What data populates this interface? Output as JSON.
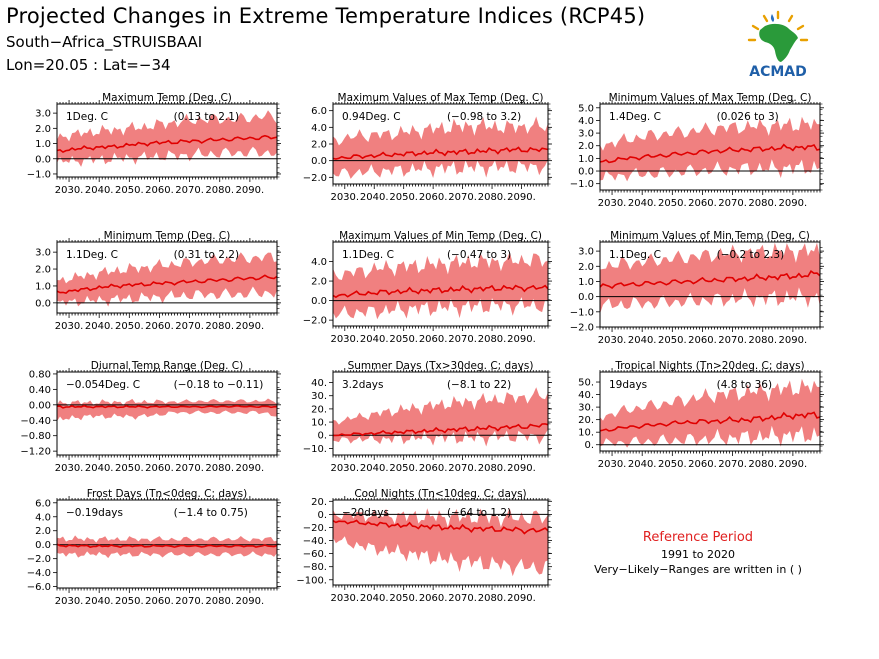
{
  "header": {
    "title": "Projected Changes in Extreme Temperature Indices (RCP45)",
    "location": "South−Africa_STRUISBAAI",
    "coords": "Lon=20.05 : Lat=−34"
  },
  "logo": {
    "text": "ACMAD",
    "icon": "africa-map-logo"
  },
  "reference": {
    "title": "Reference Period",
    "period": "1991 to 2020",
    "note": "Very−Likely−Ranges are written in ( )"
  },
  "colors": {
    "band": "#f08080",
    "line": "#e00000",
    "zero": "#000000"
  },
  "chart_data": [
    {
      "type": "area",
      "title": "Maximum Temp (Deg. C)",
      "mean_label": "1Deg. C",
      "range_label": "(0.13 to 2.1)",
      "x_ticks": [
        "2030.",
        "2040.",
        "2050.",
        "2060.",
        "2070.",
        "2080.",
        "2090."
      ],
      "y_ticks": [
        "−1.0",
        "0.0",
        "1.0",
        "2.0",
        "3.0"
      ],
      "ylim": [
        -1.2,
        3.6
      ],
      "series": [
        {
          "name": "median",
          "x": [
            2026,
            2035,
            2045,
            2055,
            2065,
            2075,
            2085,
            2095,
            2099
          ],
          "y": [
            0.5,
            0.7,
            0.8,
            1.0,
            1.1,
            1.2,
            1.3,
            1.4,
            1.4
          ]
        },
        {
          "name": "upper",
          "x": [
            2026,
            2035,
            2045,
            2055,
            2065,
            2075,
            2085,
            2095,
            2099
          ],
          "y": [
            1.4,
            1.7,
            1.9,
            2.1,
            2.4,
            2.6,
            2.6,
            2.8,
            2.7
          ]
        },
        {
          "name": "lower",
          "x": [
            2026,
            2035,
            2045,
            2055,
            2065,
            2075,
            2085,
            2095,
            2099
          ],
          "y": [
            -0.2,
            -0.1,
            0.0,
            0.1,
            0.2,
            0.3,
            0.4,
            0.4,
            0.4
          ]
        }
      ]
    },
    {
      "type": "area",
      "title": "Maximum Values of Max Temp (Deg. C)",
      "mean_label": "0.94Deg. C",
      "range_label": "(−0.98 to 3.2)",
      "x_ticks": [
        "2030.",
        "2040.",
        "2050.",
        "2060.",
        "2070.",
        "2080.",
        "2090."
      ],
      "y_ticks": [
        "−2.0",
        "0.0",
        "2.0",
        "4.0",
        "6.0"
      ],
      "ylim": [
        -2.8,
        6.8
      ],
      "series": [
        {
          "name": "median",
          "x": [
            2026,
            2035,
            2045,
            2055,
            2065,
            2075,
            2085,
            2095,
            2099
          ],
          "y": [
            0.3,
            0.5,
            0.7,
            0.9,
            1.0,
            1.1,
            1.3,
            1.3,
            1.3
          ]
        },
        {
          "name": "upper",
          "x": [
            2026,
            2035,
            2045,
            2055,
            2065,
            2075,
            2085,
            2095,
            2099
          ],
          "y": [
            2.4,
            3.0,
            3.2,
            3.6,
            4.0,
            4.2,
            4.0,
            4.2,
            4.0
          ]
        },
        {
          "name": "lower",
          "x": [
            2026,
            2035,
            2045,
            2055,
            2065,
            2075,
            2085,
            2095,
            2099
          ],
          "y": [
            -1.6,
            -1.4,
            -1.2,
            -1.0,
            -0.9,
            -0.8,
            -0.8,
            -0.7,
            -0.8
          ]
        }
      ]
    },
    {
      "type": "area",
      "title": "Minimum Values of Max Temp (Deg. C)",
      "mean_label": "1.4Deg. C",
      "range_label": "(0.026 to 3)",
      "x_ticks": [
        "2030.",
        "2040.",
        "2050.",
        "2060.",
        "2070.",
        "2080.",
        "2090."
      ],
      "y_ticks": [
        "−1.0",
        "0.0",
        "1.0",
        "2.0",
        "3.0",
        "4.0",
        "5.0"
      ],
      "ylim": [
        -1.5,
        5.3
      ],
      "series": [
        {
          "name": "median",
          "x": [
            2026,
            2035,
            2045,
            2055,
            2065,
            2075,
            2085,
            2095,
            2099
          ],
          "y": [
            0.7,
            1.0,
            1.2,
            1.4,
            1.6,
            1.7,
            1.8,
            1.9,
            1.8
          ]
        },
        {
          "name": "upper",
          "x": [
            2026,
            2035,
            2045,
            2055,
            2065,
            2075,
            2085,
            2095,
            2099
          ],
          "y": [
            2.0,
            2.5,
            2.9,
            3.1,
            3.4,
            3.5,
            3.6,
            3.7,
            3.6
          ]
        },
        {
          "name": "lower",
          "x": [
            2026,
            2035,
            2045,
            2055,
            2065,
            2075,
            2085,
            2095,
            2099
          ],
          "y": [
            -0.5,
            -0.3,
            -0.2,
            0.0,
            0.1,
            0.2,
            0.2,
            0.3,
            0.2
          ]
        }
      ]
    },
    {
      "type": "area",
      "title": "Minimum Temp (Deg. C)",
      "mean_label": "1.1Deg. C",
      "range_label": "(0.31 to 2.2)",
      "x_ticks": [
        "2030.",
        "2040.",
        "2050.",
        "2060.",
        "2070.",
        "2080.",
        "2090."
      ],
      "y_ticks": [
        "0.0",
        "1.0",
        "2.0",
        "3.0"
      ],
      "ylim": [
        -0.6,
        3.6
      ],
      "series": [
        {
          "name": "median",
          "x": [
            2026,
            2035,
            2045,
            2055,
            2065,
            2075,
            2085,
            2095,
            2099
          ],
          "y": [
            0.6,
            0.8,
            1.0,
            1.1,
            1.2,
            1.3,
            1.4,
            1.5,
            1.5
          ]
        },
        {
          "name": "upper",
          "x": [
            2026,
            2035,
            2045,
            2055,
            2065,
            2075,
            2085,
            2095,
            2099
          ],
          "y": [
            1.3,
            1.6,
            1.9,
            2.1,
            2.3,
            2.5,
            2.6,
            2.7,
            2.7
          ]
        },
        {
          "name": "lower",
          "x": [
            2026,
            2035,
            2045,
            2055,
            2065,
            2075,
            2085,
            2095,
            2099
          ],
          "y": [
            0.0,
            0.1,
            0.2,
            0.3,
            0.4,
            0.5,
            0.5,
            0.6,
            0.6
          ]
        }
      ]
    },
    {
      "type": "area",
      "title": "Maximum Values of Min Temp (Deg. C)",
      "mean_label": "1.1Deg. C",
      "range_label": "(−0.47 to 3)",
      "x_ticks": [
        "2030.",
        "2040.",
        "2050.",
        "2060.",
        "2070.",
        "2080.",
        "2090."
      ],
      "y_ticks": [
        "−2.0",
        "0.0",
        "2.0",
        "4.0"
      ],
      "ylim": [
        -2.6,
        6.0
      ],
      "series": [
        {
          "name": "median",
          "x": [
            2026,
            2035,
            2045,
            2055,
            2065,
            2075,
            2085,
            2095,
            2099
          ],
          "y": [
            0.5,
            0.7,
            0.9,
            1.0,
            1.1,
            1.2,
            1.3,
            1.3,
            1.3
          ]
        },
        {
          "name": "upper",
          "x": [
            2026,
            2035,
            2045,
            2055,
            2065,
            2075,
            2085,
            2095,
            2099
          ],
          "y": [
            2.6,
            3.0,
            3.4,
            3.6,
            3.8,
            4.0,
            4.0,
            4.2,
            4.0
          ]
        },
        {
          "name": "lower",
          "x": [
            2026,
            2035,
            2045,
            2055,
            2065,
            2075,
            2085,
            2095,
            2099
          ],
          "y": [
            -1.4,
            -1.2,
            -1.0,
            -0.8,
            -0.7,
            -0.6,
            -0.5,
            -0.5,
            -0.5
          ]
        }
      ]
    },
    {
      "type": "area",
      "title": "Minimum Values of Min Temp (Deg. C)",
      "mean_label": "1.1Deg. C",
      "range_label": "(−0.2 to 2.3)",
      "x_ticks": [
        "2030.",
        "2040.",
        "2050.",
        "2060.",
        "2070.",
        "2080.",
        "2090."
      ],
      "y_ticks": [
        "−2.0",
        "−1.0",
        "0.0",
        "1.0",
        "2.0",
        "3.0"
      ],
      "ylim": [
        -2.0,
        3.6
      ],
      "series": [
        {
          "name": "median",
          "x": [
            2026,
            2035,
            2045,
            2055,
            2065,
            2075,
            2085,
            2095,
            2099
          ],
          "y": [
            0.7,
            0.8,
            0.9,
            1.0,
            1.1,
            1.2,
            1.3,
            1.4,
            1.6
          ]
        },
        {
          "name": "upper",
          "x": [
            2026,
            2035,
            2045,
            2055,
            2065,
            2075,
            2085,
            2095,
            2099
          ],
          "y": [
            2.0,
            2.2,
            2.4,
            2.6,
            2.8,
            2.9,
            3.0,
            3.0,
            3.0
          ]
        },
        {
          "name": "lower",
          "x": [
            2026,
            2035,
            2045,
            2055,
            2065,
            2075,
            2085,
            2095,
            2099
          ],
          "y": [
            -0.6,
            -0.5,
            -0.4,
            -0.3,
            -0.2,
            -0.1,
            -0.1,
            0.0,
            -0.2
          ]
        }
      ]
    },
    {
      "type": "area",
      "title": "Diurnal Temp Range (Deg. C)",
      "mean_label": "−0.054Deg. C",
      "range_label": "(−0.18 to −0.11)",
      "x_ticks": [
        "2030.",
        "2040.",
        "2050.",
        "2060.",
        "2070.",
        "2080.",
        "2090."
      ],
      "y_ticks": [
        "−1.20",
        "−0.80",
        "−0.40",
        "0.00",
        "0.40",
        "0.80"
      ],
      "ylim": [
        -1.3,
        0.85
      ],
      "series": [
        {
          "name": "median",
          "x": [
            2026,
            2035,
            2045,
            2055,
            2065,
            2075,
            2085,
            2095,
            2099
          ],
          "y": [
            -0.05,
            -0.05,
            -0.05,
            -0.05,
            -0.05,
            -0.05,
            -0.04,
            -0.05,
            -0.05
          ]
        },
        {
          "name": "upper",
          "x": [
            2026,
            2035,
            2045,
            2055,
            2065,
            2075,
            2085,
            2095,
            2099
          ],
          "y": [
            0.05,
            0.06,
            0.07,
            0.08,
            0.08,
            0.1,
            0.1,
            0.1,
            0.1
          ]
        },
        {
          "name": "lower",
          "x": [
            2026,
            2035,
            2045,
            2055,
            2065,
            2075,
            2085,
            2095,
            2099
          ],
          "y": [
            -0.4,
            -0.3,
            -0.3,
            -0.3,
            -0.2,
            -0.2,
            -0.2,
            -0.2,
            -0.3
          ]
        }
      ]
    },
    {
      "type": "area",
      "title": "Summer Days (Tx>30deg. C; days)",
      "mean_label": "3.2days",
      "range_label": "(−8.1 to 22)",
      "x_ticks": [
        "2030.",
        "2040.",
        "2050.",
        "2060.",
        "2070.",
        "2080.",
        "2090."
      ],
      "y_ticks": [
        "−10.",
        "0.",
        "10.",
        "20.",
        "30.",
        "40."
      ],
      "ylim": [
        -15,
        48
      ],
      "series": [
        {
          "name": "median",
          "x": [
            2026,
            2035,
            2045,
            2055,
            2065,
            2075,
            2085,
            2095,
            2099
          ],
          "y": [
            0,
            1,
            2,
            3,
            4,
            5,
            6,
            7,
            8
          ]
        },
        {
          "name": "upper",
          "x": [
            2026,
            2035,
            2045,
            2055,
            2065,
            2075,
            2085,
            2095,
            2099
          ],
          "y": [
            10,
            14,
            18,
            21,
            24,
            26,
            28,
            30,
            30
          ]
        },
        {
          "name": "lower",
          "x": [
            2026,
            2035,
            2045,
            2055,
            2065,
            2075,
            2085,
            2095,
            2099
          ],
          "y": [
            -4,
            -3,
            -3,
            -2,
            -2,
            -2,
            -1,
            -1,
            -1
          ]
        }
      ]
    },
    {
      "type": "area",
      "title": "Tropical Nights (Tn>20deg. C; days)",
      "mean_label": "19days",
      "range_label": "(4.8 to 36)",
      "x_ticks": [
        "2030.",
        "2040.",
        "2050.",
        "2060.",
        "2070.",
        "2080.",
        "2090."
      ],
      "y_ticks": [
        "0.",
        "10.",
        "20.",
        "30.",
        "40.",
        "50."
      ],
      "ylim": [
        -5,
        58
      ],
      "series": [
        {
          "name": "median",
          "x": [
            2026,
            2035,
            2045,
            2055,
            2065,
            2075,
            2085,
            2095,
            2099
          ],
          "y": [
            11,
            14,
            16,
            18,
            19,
            20,
            22,
            24,
            23
          ]
        },
        {
          "name": "upper",
          "x": [
            2026,
            2035,
            2045,
            2055,
            2065,
            2075,
            2085,
            2095,
            2099
          ],
          "y": [
            22,
            28,
            32,
            36,
            40,
            42,
            44,
            46,
            45
          ]
        },
        {
          "name": "lower",
          "x": [
            2026,
            2035,
            2045,
            2055,
            2065,
            2075,
            2085,
            2095,
            2099
          ],
          "y": [
            1,
            2,
            3,
            4,
            5,
            6,
            7,
            8,
            7
          ]
        }
      ]
    },
    {
      "type": "area",
      "title": "Frost Days (Tn<0deg. C; days)",
      "mean_label": "−0.19days",
      "range_label": "(−1.4 to 0.75)",
      "x_ticks": [
        "2030.",
        "2040.",
        "2050.",
        "2060.",
        "2070.",
        "2080.",
        "2090."
      ],
      "y_ticks": [
        "−6.0",
        "−4.0",
        "−2.0",
        "0.0",
        "2.0",
        "4.0",
        "6.0"
      ],
      "ylim": [
        -6.2,
        6.4
      ],
      "series": [
        {
          "name": "median",
          "x": [
            2026,
            2035,
            2045,
            2055,
            2065,
            2075,
            2085,
            2095,
            2099
          ],
          "y": [
            -0.1,
            -0.2,
            -0.2,
            -0.2,
            -0.2,
            -0.2,
            -0.2,
            -0.2,
            -0.2
          ]
        },
        {
          "name": "upper",
          "x": [
            2026,
            2035,
            2045,
            2055,
            2065,
            2075,
            2085,
            2095,
            2099
          ],
          "y": [
            0.9,
            0.8,
            0.8,
            0.8,
            0.8,
            0.8,
            0.8,
            0.8,
            0.8
          ]
        },
        {
          "name": "lower",
          "x": [
            2026,
            2035,
            2045,
            2055,
            2065,
            2075,
            2085,
            2095,
            2099
          ],
          "y": [
            -1.4,
            -1.4,
            -1.4,
            -1.4,
            -1.4,
            -1.4,
            -1.4,
            -1.4,
            -1.4
          ]
        }
      ]
    },
    {
      "type": "area",
      "title": "Cool Nights (Tn<10deg. C; days)",
      "mean_label": "−20days",
      "range_label": "(−64 to 1.2)",
      "x_ticks": [
        "2030.",
        "2040.",
        "2050.",
        "2060.",
        "2070.",
        "2080.",
        "2090."
      ],
      "y_ticks": [
        "−100.",
        "−80.",
        "−60.",
        "−40.",
        "−20.",
        "0.",
        "20."
      ],
      "ylim": [
        -108,
        22
      ],
      "series": [
        {
          "name": "median",
          "x": [
            2026,
            2035,
            2045,
            2055,
            2065,
            2075,
            2085,
            2095,
            2099
          ],
          "y": [
            -10,
            -13,
            -16,
            -18,
            -20,
            -22,
            -23,
            -25,
            -24
          ]
        },
        {
          "name": "upper",
          "x": [
            2026,
            2035,
            2045,
            2055,
            2065,
            2075,
            2085,
            2095,
            2099
          ],
          "y": [
            0,
            -1,
            -2,
            -3,
            -4,
            -4,
            -5,
            -5,
            -4
          ]
        },
        {
          "name": "lower",
          "x": [
            2026,
            2035,
            2045,
            2055,
            2065,
            2075,
            2085,
            2095,
            2099
          ],
          "y": [
            -38,
            -48,
            -56,
            -62,
            -70,
            -74,
            -78,
            -82,
            -80
          ]
        }
      ]
    }
  ]
}
